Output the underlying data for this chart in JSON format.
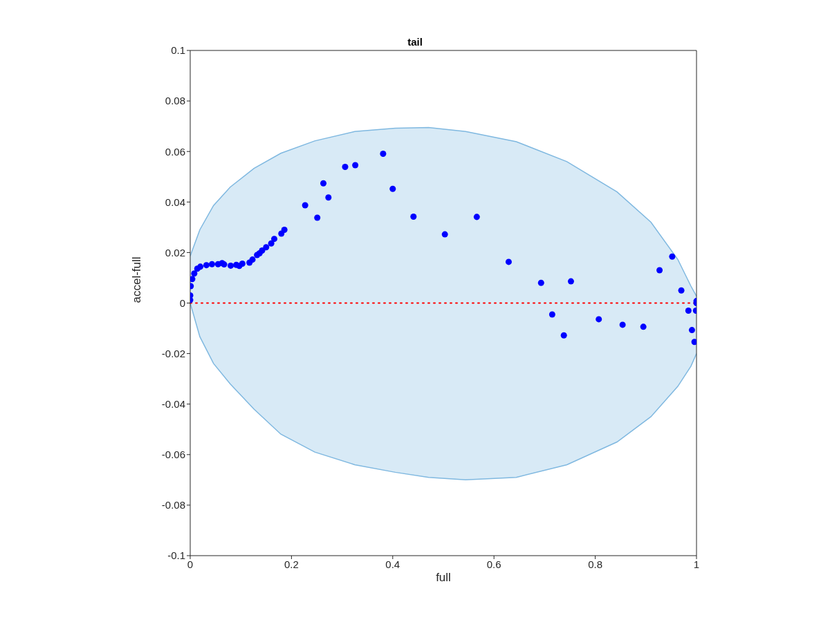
{
  "chart_data": {
    "type": "scatter",
    "title": "tail",
    "xlabel": "full",
    "ylabel": "accel-full",
    "series": [
      {
        "type": "area",
        "color": "#7fb8e0",
        "x": [
          0,
          0.019,
          0.046,
          0.079,
          0.126,
          0.179,
          0.246,
          0.325,
          0.405,
          0.471,
          0.544,
          0.644,
          0.744,
          0.843,
          0.91,
          0.963,
          0.989,
          1
        ],
        "values": [
          0.0186,
          0.029,
          0.0386,
          0.0459,
          0.0533,
          0.0593,
          0.0642,
          0.0679,
          0.0692,
          0.0695,
          0.0679,
          0.0639,
          0.056,
          0.044,
          0.032,
          0.0173,
          0.0067,
          0.0027
        ]
      },
      {
        "type": "area",
        "color": "#7fb8e0",
        "x": [
          0,
          0.019,
          0.046,
          0.079,
          0.126,
          0.179,
          0.246,
          0.325,
          0.405,
          0.471,
          0.544,
          0.644,
          0.744,
          0.843,
          0.91,
          0.963,
          0.989,
          1
        ],
        "values": [
          0,
          -0.0133,
          -0.0239,
          -0.032,
          -0.042,
          -0.0519,
          -0.059,
          -0.064,
          -0.067,
          -0.069,
          -0.07,
          -0.069,
          -0.064,
          -0.055,
          -0.045,
          -0.033,
          -0.025,
          -0.02
        ]
      },
      {
        "color": "#0000ff",
        "marker": "circle",
        "x": [
          0,
          0,
          0.001,
          0.004,
          0.008,
          0.014,
          0.02,
          0.032,
          0.043,
          0.055,
          0.063,
          0.067,
          0.08,
          0.091,
          0.097,
          0.103,
          0.117,
          0.123,
          0.132,
          0.137,
          0.142,
          0.15,
          0.16,
          0.166,
          0.18,
          0.186,
          0.227,
          0.251,
          0.263,
          0.273,
          0.306,
          0.326,
          0.381,
          0.4,
          0.441,
          0.503,
          0.566,
          0.629,
          0.693,
          0.715,
          0.738,
          0.752,
          0.807,
          0.854,
          0.895,
          0.927,
          0.952,
          0.97,
          0.984,
          0.991,
          0.996,
          0.999,
          1,
          1
        ],
        "values": [
          0.0012,
          0.003,
          0.0067,
          0.0095,
          0.0117,
          0.0136,
          0.0144,
          0.015,
          0.0154,
          0.0154,
          0.0158,
          0.0153,
          0.0148,
          0.0151,
          0.0147,
          0.0156,
          0.016,
          0.0172,
          0.019,
          0.0197,
          0.0208,
          0.0221,
          0.0236,
          0.0254,
          0.0275,
          0.029,
          0.0387,
          0.0338,
          0.0474,
          0.0418,
          0.0539,
          0.0546,
          0.0591,
          0.0452,
          0.0342,
          0.0272,
          0.0341,
          0.0163,
          0.008,
          -0.0045,
          -0.0128,
          0.0086,
          -0.0064,
          -0.0086,
          -0.0094,
          0.013,
          0.0184,
          0.005,
          -0.003,
          -0.0107,
          -0.0154,
          -0.003,
          0.0008,
          0
        ]
      }
    ],
    "xlim": [
      0,
      1
    ],
    "xticks": [
      0,
      0.2,
      0.4,
      0.6,
      0.8,
      1
    ],
    "ylim": [
      -0.1,
      0.1
    ],
    "yticks": [
      -0.1,
      -0.08,
      -0.06,
      -0.04,
      -0.02,
      0,
      0.02,
      0.04,
      0.06,
      0.08,
      0.1
    ],
    "ref_lines": [
      {
        "axis": "y",
        "value": 0,
        "color": "#ff0000",
        "line_style": "dotted"
      }
    ],
    "grid": false,
    "legend": false
  }
}
